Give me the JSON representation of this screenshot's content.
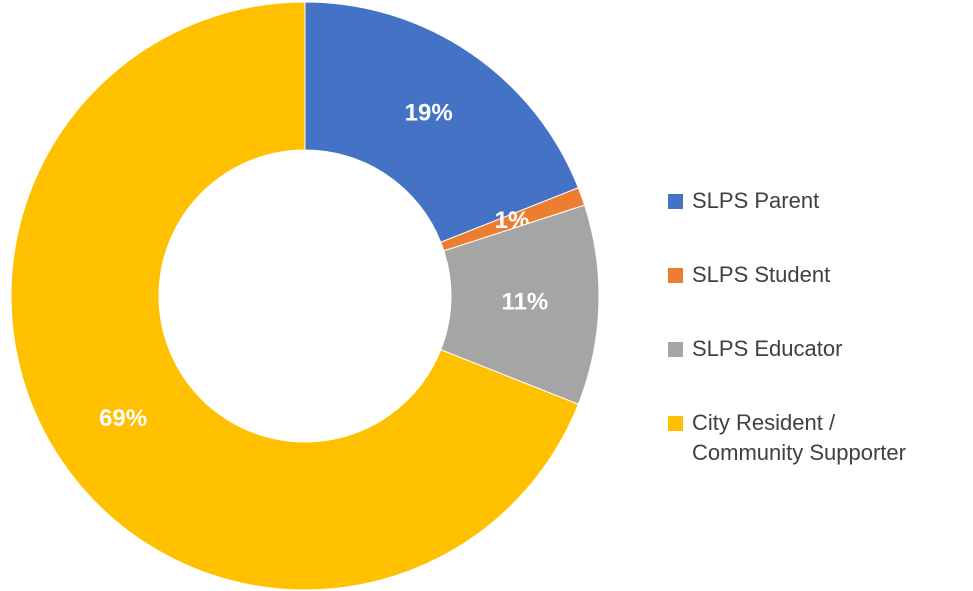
{
  "chart_data": {
    "type": "donut",
    "categories": [
      "SLPS Parent",
      "SLPS Student",
      "SLPS Educator",
      "City Resident / Community Supporter"
    ],
    "values": [
      19,
      1,
      11,
      69
    ],
    "value_labels": [
      "19%",
      "1%",
      "11%",
      "69%"
    ],
    "colors": [
      "#4472c4",
      "#ed7d31",
      "#a5a5a5",
      "#ffc000"
    ],
    "legend": "right"
  }
}
